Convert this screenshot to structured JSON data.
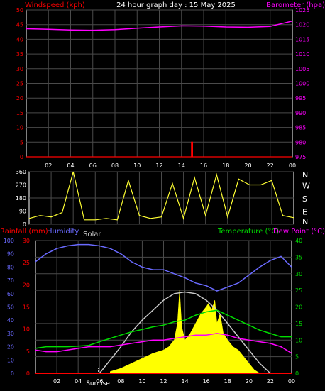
{
  "header": {
    "windspeed_label": "Windspeed (kph)",
    "title": "24 hour graph day : 15 May 2025",
    "barometer_label": "Barometer (hpa)"
  },
  "middle": {
    "direction_labels": [
      "N",
      "W",
      "S",
      "E",
      "N"
    ]
  },
  "lower_header": {
    "rainfall_label": "Rainfall (mm)",
    "humidity_label": "Humidity",
    "solar_label": "Solar",
    "temperature_label": "Temperature (°C)",
    "dewpoint_label": "Dew Point (°C)"
  },
  "markers": {
    "sunrise_label": "Sunrise"
  },
  "colors": {
    "windspeed": "#ff0000",
    "barometer": "#ff00ff",
    "direction": "#ffff33",
    "rainfall": "#ff0000",
    "humidity": "#6a6aff",
    "solar_fill": "#ffff00",
    "solar_curve": "#c8c8c8",
    "temperature": "#00dd00",
    "temperature_axis": "#00dd00",
    "dewpoint": "#ff00ff",
    "grid": "#4a4a4a",
    "axis": "#ffffff"
  },
  "chart_data": [
    {
      "type": "line",
      "x_ticks": [
        "02",
        "04",
        "06",
        "08",
        "10",
        "12",
        "14",
        "16",
        "18",
        "20",
        "22",
        "00"
      ],
      "left_axis": {
        "label": "Windspeed (kph)",
        "ylim": [
          0,
          50
        ],
        "ticks": [
          "0",
          "5",
          "10",
          "15",
          "20",
          "25",
          "30",
          "35",
          "40",
          "45",
          "50"
        ]
      },
      "right_axis": {
        "label": "Barometer (hpa)",
        "ylim": [
          975,
          1025
        ],
        "ticks": [
          "975",
          "980",
          "985",
          "990",
          "995",
          "1000",
          "1005",
          "1010",
          "1015",
          "1020",
          "1025"
        ]
      },
      "series": [
        {
          "name": "Barometer (hpa)",
          "axis": "right",
          "x": [
            0,
            2,
            4,
            6,
            8,
            10,
            12,
            14,
            16,
            18,
            20,
            22,
            24
          ],
          "values": [
            1018.6,
            1018.4,
            1018.2,
            1018.1,
            1018.3,
            1018.8,
            1019.2,
            1019.6,
            1019.5,
            1019.2,
            1019.1,
            1019.4,
            1021.2
          ]
        },
        {
          "name": "Windspeed (kph)",
          "axis": "left",
          "x": [
            0,
            14.9,
            14.9,
            15.0,
            15.0,
            24
          ],
          "values": [
            0,
            0,
            5,
            5,
            0,
            0
          ]
        }
      ]
    },
    {
      "type": "line",
      "x_ticks": [
        "02",
        "04",
        "06",
        "08",
        "10",
        "12",
        "14",
        "16",
        "18",
        "20",
        "22",
        "00"
      ],
      "left_axis": {
        "ylim": [
          0,
          360
        ],
        "ticks": [
          "0",
          "90",
          "180",
          "270",
          "360"
        ]
      },
      "right_axis_labels": [
        "N",
        "W",
        "S",
        "E",
        "N"
      ],
      "series": [
        {
          "name": "Wind direction",
          "x": [
            0,
            1,
            2,
            3,
            4,
            5,
            6,
            7,
            8,
            9,
            10,
            11,
            12,
            13,
            14,
            15,
            16,
            17,
            18,
            19,
            20,
            21,
            22,
            23,
            24
          ],
          "values": [
            40,
            60,
            50,
            80,
            360,
            30,
            30,
            40,
            30,
            300,
            60,
            40,
            50,
            280,
            40,
            320,
            60,
            340,
            50,
            310,
            270,
            270,
            300,
            60,
            45
          ]
        }
      ]
    },
    {
      "type": "line",
      "x_ticks": [
        "02",
        "04",
        "06",
        "08",
        "10",
        "12",
        "14",
        "16",
        "18",
        "20",
        "22",
        "00"
      ],
      "left_axes": [
        {
          "label": "Rainfall (mm)",
          "ylim": [
            0,
            30
          ],
          "ticks": [
            "0",
            "5",
            "10",
            "15",
            "20",
            "25",
            "30"
          ]
        },
        {
          "label": "Humidity",
          "ylim": [
            0,
            100
          ],
          "ticks": [
            "0",
            "10",
            "20",
            "30",
            "40",
            "50",
            "60",
            "70",
            "80",
            "90",
            "100"
          ]
        }
      ],
      "right_axis": {
        "label": "Temperature (°C)",
        "ylim": [
          0,
          40
        ],
        "ticks": [
          "0",
          "5",
          "10",
          "15",
          "20",
          "25",
          "30",
          "35",
          "40"
        ]
      },
      "series": [
        {
          "name": "Humidity",
          "axis": "humidity",
          "x": [
            0,
            1,
            2,
            3,
            4,
            5,
            6,
            7,
            8,
            9,
            10,
            11,
            12,
            13,
            14,
            15,
            16,
            17,
            18,
            19,
            20,
            21,
            22,
            23,
            24
          ],
          "values": [
            84,
            90,
            94,
            96,
            97,
            97,
            96,
            94,
            90,
            84,
            80,
            78,
            78,
            75,
            72,
            68,
            66,
            62,
            65,
            68,
            74,
            80,
            85,
            88,
            80
          ]
        },
        {
          "name": "Temperature (°C)",
          "axis": "temperature",
          "x": [
            0,
            1,
            2,
            3,
            4,
            5,
            6,
            7,
            8,
            9,
            10,
            11,
            12,
            13,
            14,
            15,
            16,
            17,
            18,
            19,
            20,
            21,
            22,
            23,
            24
          ],
          "values": [
            7.5,
            8,
            8,
            8,
            8.2,
            8.4,
            9.5,
            10.5,
            11.5,
            12.5,
            13.2,
            14,
            14.5,
            15.5,
            16,
            17.5,
            18.5,
            19,
            17.5,
            16,
            14.5,
            13,
            12,
            11,
            11
          ]
        },
        {
          "name": "Dew Point (°C)",
          "axis": "temperature",
          "x": [
            0,
            1,
            2,
            3,
            4,
            5,
            6,
            7,
            8,
            9,
            10,
            11,
            12,
            13,
            14,
            15,
            16,
            17,
            18,
            19,
            20,
            21,
            22,
            23,
            24
          ],
          "values": [
            7,
            6.5,
            6.5,
            7,
            7.5,
            8,
            8,
            8,
            8.5,
            9,
            9.5,
            10,
            10,
            10.5,
            11,
            11.5,
            11.5,
            12,
            11.5,
            10.5,
            10,
            9.5,
            9,
            8,
            6
          ]
        },
        {
          "name": "Solar (max)",
          "axis": "temperature",
          "x": [
            6,
            7,
            8,
            9,
            10,
            11,
            12,
            13,
            14,
            15,
            16,
            17,
            18,
            19,
            20,
            21,
            22
          ],
          "values": [
            0,
            4,
            8,
            12.5,
            16,
            19,
            22,
            24,
            24.5,
            24,
            22,
            19,
            15,
            11,
            7,
            3,
            0
          ]
        },
        {
          "name": "Solar",
          "axis": "temperature",
          "x": [
            7,
            8,
            9,
            10,
            11,
            12,
            12.5,
            13,
            13.3,
            13.5,
            13.7,
            14,
            14.5,
            15,
            15.5,
            16,
            16.2,
            16.5,
            16.8,
            17,
            17.3,
            17.6,
            18,
            18.5,
            19,
            19.5,
            20,
            20.5,
            21
          ],
          "values": [
            0.5,
            1.5,
            3,
            4.5,
            6,
            7,
            8,
            10,
            15,
            25,
            14,
            10,
            12,
            15,
            18,
            20,
            21,
            19,
            22,
            15,
            18,
            12,
            10,
            8,
            7,
            5,
            3,
            1,
            0
          ]
        },
        {
          "name": "Rainfall (mm)",
          "axis": "rainfall",
          "x": [
            0,
            24
          ],
          "values": [
            0,
            0
          ]
        }
      ]
    }
  ]
}
